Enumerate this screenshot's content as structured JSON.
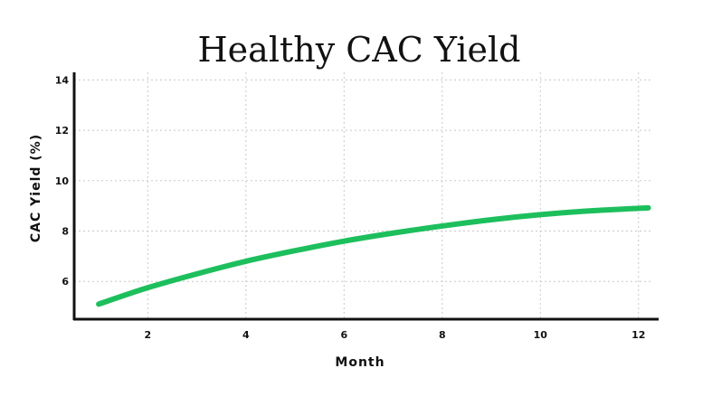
{
  "chart_data": {
    "type": "line",
    "title": "Healthy CAC Yield",
    "xlabel": "Month",
    "ylabel": "CAC Yield (%)",
    "xlim": [
      0.5,
      12.3
    ],
    "ylim": [
      4.5,
      14.3
    ],
    "xticks": [
      2,
      4,
      6,
      8,
      10,
      12
    ],
    "yticks": [
      6,
      8,
      10,
      12,
      14
    ],
    "grid": true,
    "series": [
      {
        "color": "#1dbf5d",
        "x": [
          1,
          2,
          3,
          4,
          5,
          6,
          7,
          8,
          9,
          10,
          11,
          12.2
        ],
        "y": [
          5.1,
          5.75,
          6.3,
          6.8,
          7.22,
          7.6,
          7.92,
          8.2,
          8.45,
          8.65,
          8.8,
          8.92
        ]
      }
    ]
  }
}
